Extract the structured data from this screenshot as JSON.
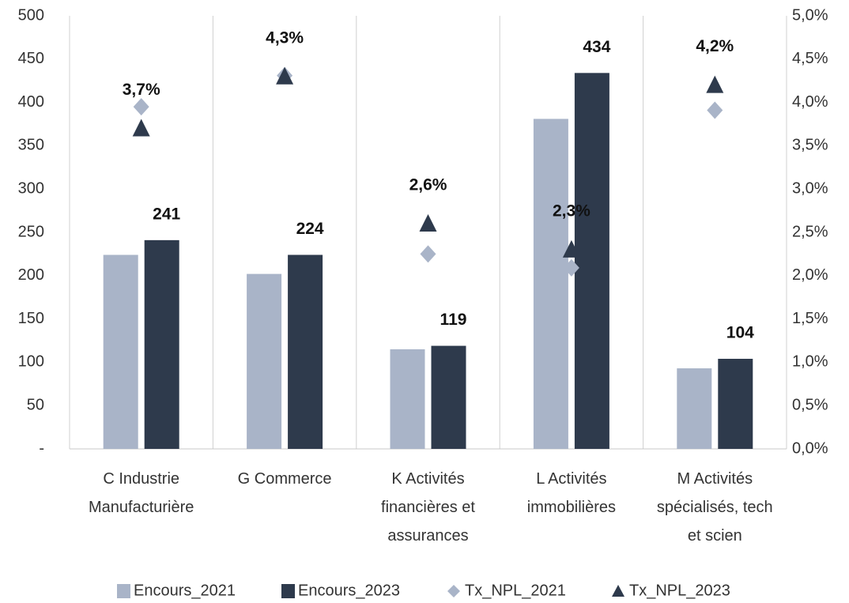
{
  "chart_data": {
    "type": "bar",
    "categories": [
      "C Industrie\nManufacturière",
      "G Commerce",
      "K Activités\nfinancières et\nassurances",
      "L Activités\nimmobilières",
      "M Activités\nspécialisés, tech\net scien"
    ],
    "series": [
      {
        "name": "Encours_2021",
        "type": "bar",
        "color": "#a9b4c8",
        "values": [
          224,
          202,
          115,
          381,
          93
        ]
      },
      {
        "name": "Encours_2023",
        "type": "bar",
        "color": "#2e3a4c",
        "values": [
          241,
          224,
          119,
          434,
          104
        ],
        "show_labels": true
      },
      {
        "name": "Tx_NPL_2021",
        "type": "diamond",
        "axis": "y2",
        "color": "#a9b4c8",
        "values": [
          3.95,
          4.31,
          2.25,
          2.09,
          3.91
        ]
      },
      {
        "name": "Tx_NPL_2023",
        "type": "triangle",
        "axis": "y2",
        "color": "#2e3a4c",
        "values": [
          3.7,
          4.3,
          2.6,
          2.3,
          4.2
        ],
        "value_labels": [
          "3,7%",
          "4,3%",
          "2,6%",
          "2,3%",
          "4,2%"
        ],
        "show_labels": true
      }
    ],
    "ylim": [
      0,
      500
    ],
    "yticks": [
      {
        "value": 0,
        "label": "-"
      },
      50,
      100,
      150,
      200,
      250,
      300,
      350,
      400,
      450,
      500
    ],
    "y2lim": [
      0,
      5
    ],
    "y2ticks": [
      {
        "value": 0,
        "label": "0,0%"
      },
      {
        "value": 0.5,
        "label": "0,5%"
      },
      {
        "value": 1,
        "label": "1,0%"
      },
      {
        "value": 1.5,
        "label": "1,5%"
      },
      {
        "value": 2,
        "label": "2,0%"
      },
      {
        "value": 2.5,
        "label": "2,5%"
      },
      {
        "value": 3,
        "label": "3,0%"
      },
      {
        "value": 3.5,
        "label": "3,5%"
      },
      {
        "value": 4,
        "label": "4,0%"
      },
      {
        "value": 4.5,
        "label": "4,5%"
      },
      {
        "value": 5,
        "label": "5,0%"
      }
    ],
    "legend": "bottom"
  }
}
